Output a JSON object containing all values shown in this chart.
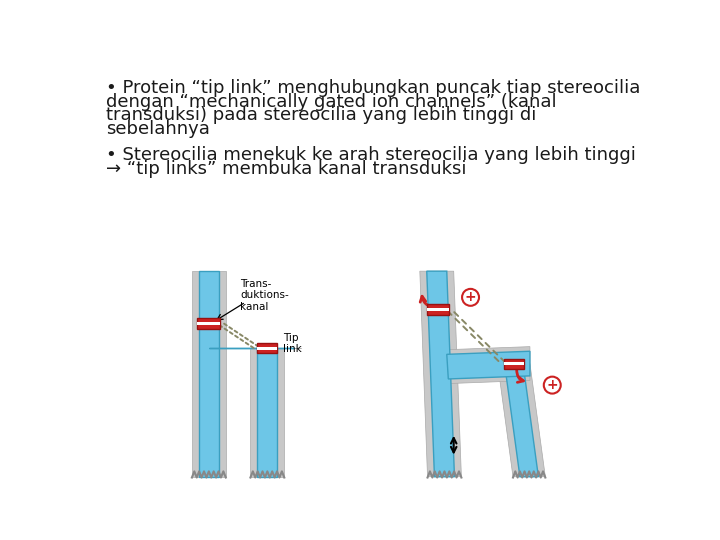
{
  "background_color": "#ffffff",
  "line1": "• Protein “tip link” menghubungkan puncak tiap stereocilia",
  "line2": "dengan “mechanically gated ion channels” (kanal",
  "line3": "transduksi) pada stereocilia yang lebih tinggi di",
  "line4": "sebelahnya",
  "line5": "• Stereocilia menekuk ke arah stereocilia yang lebih tinggi",
  "line6": "→ “tip links” membuka kanal transduksi",
  "text_color": "#1a1a1a",
  "text_fontsize": 13.0,
  "blue_color": "#6dc6e7",
  "gray_color": "#c8c8c8",
  "red_color": "#cc2222",
  "plus_color": "#cc2222",
  "rope_color": "#888866",
  "label_trans": "Trans-\nduktions-\nkanal",
  "label_tip": "Tip\nlink"
}
